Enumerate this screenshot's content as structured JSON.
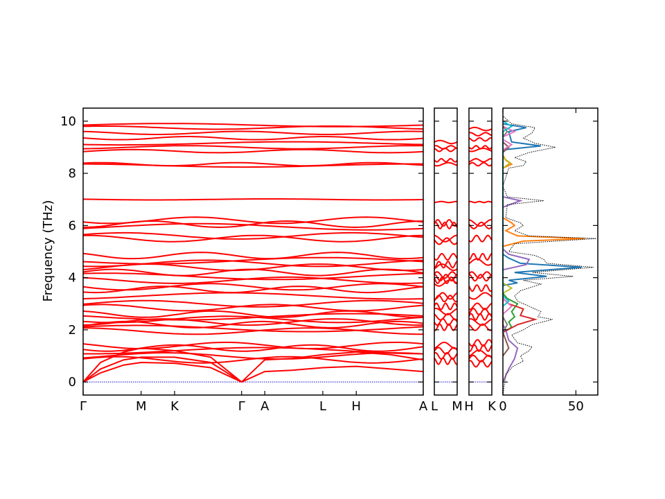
{
  "chart_data": {
    "type": "line",
    "ylabel": "Frequency (THz)",
    "ylim": [
      -0.5,
      10.5
    ],
    "yticks": [
      0,
      2,
      4,
      6,
      8,
      10
    ],
    "colors": {
      "band": "#ff0000",
      "zero": "#0000cc",
      "dos_total": "#000000"
    },
    "band_panels": [
      {
        "labels": [
          "Γ",
          "M",
          "K",
          "Γ",
          "A",
          "L",
          "H",
          "A"
        ],
        "label_pos": [
          0,
          1,
          1.577,
          2.732,
          3.132,
          4.132,
          4.709,
          5.864
        ]
      },
      {
        "labels": [
          "L",
          "M"
        ],
        "label_pos": [
          0,
          1
        ]
      },
      {
        "labels": [
          "H",
          "K"
        ],
        "label_pos": [
          0,
          1
        ]
      }
    ],
    "path_end_labels": [
      "A",
      "L",
      "M",
      "H",
      "K"
    ],
    "bands": {
      "acoustic": [
        {
          "points": [
            [
              0,
              0
            ],
            [
              0.3,
              0.35
            ],
            [
              0.7,
              0.65
            ],
            [
              1.0,
              0.75
            ],
            [
              1.577,
              0.72
            ],
            [
              2.2,
              0.55
            ],
            [
              2.732,
              0
            ]
          ]
        },
        {
          "points": [
            [
              0,
              0
            ],
            [
              0.3,
              0.5
            ],
            [
              0.7,
              0.85
            ],
            [
              1.0,
              0.95
            ],
            [
              1.577,
              0.95
            ],
            [
              2.2,
              0.75
            ],
            [
              2.732,
              0
            ]
          ]
        },
        {
          "points": [
            [
              0,
              0
            ],
            [
              0.3,
              0.75
            ],
            [
              0.7,
              1.15
            ],
            [
              1.0,
              1.3
            ],
            [
              1.577,
              1.2
            ],
            [
              2.2,
              0.95
            ],
            [
              2.732,
              0
            ]
          ]
        },
        {
          "points": [
            [
              2.732,
              0
            ],
            [
              3.132,
              0.4
            ],
            [
              3.6,
              0.45
            ],
            [
              4.132,
              0.55
            ],
            [
              4.709,
              0.6
            ],
            [
              5.3,
              0.5
            ],
            [
              5.864,
              0.4
            ]
          ]
        },
        {
          "points": [
            [
              2.732,
              0
            ],
            [
              3.132,
              0.85
            ],
            [
              3.6,
              0.9
            ],
            [
              4.132,
              1.05
            ],
            [
              4.709,
              1.15
            ],
            [
              5.3,
              1.05
            ],
            [
              5.864,
              0.85
            ]
          ]
        }
      ],
      "levels_gamma_a": [
        9.85,
        9.75,
        9.55,
        9.35,
        9.15,
        9.0,
        8.85,
        8.35,
        8.3,
        7.0,
        6.2,
        6.05,
        5.95,
        5.6,
        5.5,
        4.85,
        4.65,
        4.55,
        4.4,
        4.2,
        4.05,
        3.9,
        3.65,
        3.55,
        3.3,
        3.0,
        2.85,
        2.6,
        2.5,
        2.4,
        2.3,
        2.2,
        2.05,
        1.95,
        1.4,
        1.3,
        1.2,
        1.0,
        0.85
      ],
      "levels_lm": [
        9.2,
        9.0,
        8.9,
        8.5,
        8.35,
        6.9,
        6.1,
        6.0,
        5.5,
        5.4,
        4.8,
        4.5,
        4.4,
        4.1,
        4.0,
        3.9,
        3.8,
        3.3,
        3.2,
        2.9,
        2.7,
        2.5,
        2.3,
        2.1,
        1.4,
        1.2,
        1.0,
        0.8
      ],
      "levels_hk": [
        9.7,
        9.5,
        9.3,
        9.0,
        8.9,
        8.5,
        8.35,
        6.9,
        6.1,
        6.0,
        5.5,
        4.8,
        4.6,
        4.1,
        4.0,
        3.6,
        3.3,
        2.9,
        2.7,
        2.5,
        2.3,
        2.1,
        1.5,
        1.3,
        1.1,
        0.9,
        0.7
      ]
    },
    "dos": {
      "xlim": [
        0,
        65
      ],
      "xticks": [
        0,
        50
      ],
      "total": [
        [
          -0.5,
          0
        ],
        [
          0.3,
          2
        ],
        [
          0.6,
          7
        ],
        [
          0.8,
          14
        ],
        [
          1.0,
          12
        ],
        [
          1.2,
          18
        ],
        [
          1.35,
          20
        ],
        [
          1.5,
          10
        ],
        [
          1.8,
          6
        ],
        [
          2.0,
          14
        ],
        [
          2.2,
          20
        ],
        [
          2.4,
          34
        ],
        [
          2.5,
          24
        ],
        [
          2.7,
          26
        ],
        [
          2.9,
          18
        ],
        [
          3.1,
          10
        ],
        [
          3.3,
          8
        ],
        [
          3.5,
          12
        ],
        [
          3.75,
          26
        ],
        [
          3.9,
          14
        ],
        [
          4.05,
          48
        ],
        [
          4.2,
          20
        ],
        [
          4.4,
          62
        ],
        [
          4.55,
          30
        ],
        [
          4.7,
          28
        ],
        [
          4.85,
          22
        ],
        [
          5.0,
          4
        ],
        [
          5.3,
          8
        ],
        [
          5.5,
          64
        ],
        [
          5.6,
          18
        ],
        [
          5.8,
          8
        ],
        [
          6.0,
          14
        ],
        [
          6.1,
          12
        ],
        [
          6.3,
          2
        ],
        [
          6.8,
          3
        ],
        [
          6.95,
          28
        ],
        [
          7.1,
          3
        ],
        [
          7.5,
          0
        ],
        [
          8.2,
          4
        ],
        [
          8.3,
          14
        ],
        [
          8.45,
          16
        ],
        [
          8.6,
          8
        ],
        [
          8.8,
          18
        ],
        [
          9.0,
          36
        ],
        [
          9.15,
          22
        ],
        [
          9.35,
          14
        ],
        [
          9.55,
          20
        ],
        [
          9.75,
          22
        ],
        [
          9.9,
          6
        ],
        [
          10.2,
          0
        ],
        [
          10.5,
          0
        ]
      ],
      "projected": [
        {
          "color": "#1f77b4",
          "points": [
            [
              3.7,
              0
            ],
            [
              3.8,
              10
            ],
            [
              3.9,
              4
            ],
            [
              4.05,
              30
            ],
            [
              4.2,
              8
            ],
            [
              4.4,
              54
            ],
            [
              4.55,
              12
            ],
            [
              4.75,
              4
            ],
            [
              4.9,
              0
            ],
            [
              8.9,
              0
            ],
            [
              9.05,
              26
            ],
            [
              9.2,
              6
            ],
            [
              9.6,
              4
            ],
            [
              9.75,
              16
            ],
            [
              9.9,
              0
            ]
          ]
        },
        {
          "color": "#ff7f0e",
          "points": [
            [
              5.2,
              0
            ],
            [
              5.4,
              14
            ],
            [
              5.5,
              56
            ],
            [
              5.6,
              10
            ],
            [
              5.8,
              2
            ],
            [
              6.0,
              8
            ],
            [
              6.1,
              6
            ],
            [
              6.3,
              0
            ],
            [
              8.2,
              0
            ],
            [
              8.35,
              6
            ],
            [
              8.5,
              2
            ],
            [
              8.7,
              0
            ]
          ]
        },
        {
          "color": "#2ca02c",
          "points": [
            [
              1.9,
              0
            ],
            [
              2.1,
              6
            ],
            [
              2.3,
              4
            ],
            [
              2.5,
              8
            ],
            [
              2.7,
              6
            ],
            [
              3.0,
              10
            ],
            [
              3.2,
              3
            ],
            [
              3.4,
              0
            ]
          ]
        },
        {
          "color": "#d62728",
          "points": [
            [
              1.9,
              0
            ],
            [
              2.2,
              10
            ],
            [
              2.4,
              22
            ],
            [
              2.55,
              12
            ],
            [
              2.8,
              14
            ],
            [
              3.0,
              4
            ],
            [
              3.2,
              0
            ]
          ]
        },
        {
          "color": "#9467bd",
          "points": [
            [
              0.0,
              0
            ],
            [
              0.5,
              4
            ],
            [
              0.9,
              8
            ],
            [
              1.3,
              10
            ],
            [
              1.6,
              4
            ],
            [
              2.0,
              2
            ],
            [
              2.2,
              0
            ],
            [
              4.3,
              0
            ],
            [
              4.5,
              16
            ],
            [
              4.7,
              18
            ],
            [
              4.9,
              4
            ],
            [
              5.1,
              0
            ],
            [
              6.7,
              0
            ],
            [
              6.95,
              12
            ],
            [
              7.1,
              0
            ]
          ]
        },
        {
          "color": "#8c564b",
          "points": [
            [
              1.0,
              0
            ],
            [
              1.3,
              4
            ],
            [
              1.6,
              2
            ],
            [
              1.9,
              0
            ],
            [
              8.8,
              0
            ],
            [
              9.0,
              4
            ],
            [
              9.2,
              0
            ]
          ]
        },
        {
          "color": "#e377c2",
          "points": [
            [
              2.6,
              0
            ],
            [
              2.9,
              6
            ],
            [
              3.2,
              0
            ],
            [
              8.9,
              0
            ],
            [
              9.1,
              6
            ],
            [
              9.3,
              0
            ],
            [
              9.4,
              0
            ],
            [
              9.6,
              8
            ],
            [
              9.8,
              0
            ]
          ]
        },
        {
          "color": "#7f7f7f",
          "points": [
            [
              1.9,
              0
            ],
            [
              2.2,
              3
            ],
            [
              2.5,
              0
            ],
            [
              9.4,
              0
            ],
            [
              9.6,
              3
            ],
            [
              9.8,
              0
            ]
          ]
        },
        {
          "color": "#bcbd22",
          "points": [
            [
              3.4,
              0
            ],
            [
              3.6,
              6
            ],
            [
              3.8,
              0
            ],
            [
              8.2,
              0
            ],
            [
              8.4,
              5
            ],
            [
              8.6,
              0
            ]
          ]
        },
        {
          "color": "#17becf",
          "points": [
            [
              2.9,
              0
            ],
            [
              3.1,
              4
            ],
            [
              3.3,
              0
            ],
            [
              9.6,
              0
            ],
            [
              9.8,
              6
            ],
            [
              10.0,
              0
            ]
          ]
        }
      ]
    }
  }
}
